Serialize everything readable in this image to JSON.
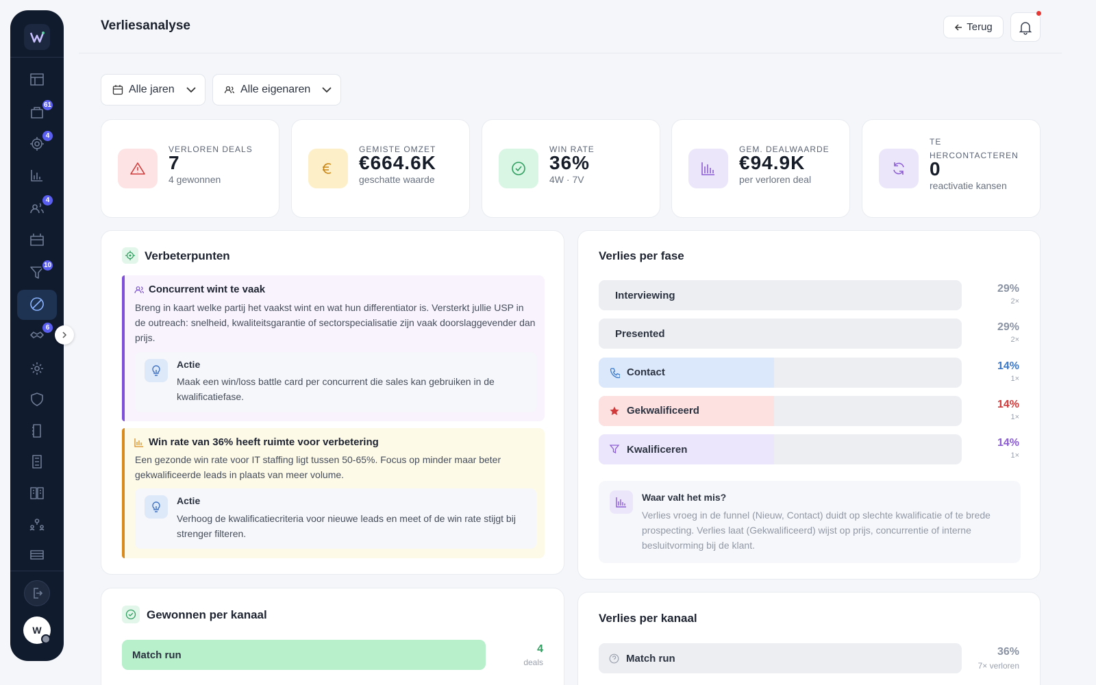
{
  "header": {
    "title": "Verliesanalyse",
    "back": "Terug"
  },
  "sidebar": {
    "badges": [
      61,
      4,
      4,
      10,
      6
    ],
    "avatar": "W"
  },
  "filters": [
    "Alle jaren",
    "Alle eigenaren"
  ],
  "kpis": [
    {
      "label": "VERLOREN DEALS",
      "value": "7",
      "sub": "4 gewonnen"
    },
    {
      "label": "GEMISTE OMZET",
      "value": "€664.6K",
      "sub": "geschatte waarde"
    },
    {
      "label": "WIN RATE",
      "value": "36%",
      "sub": "4W · 7V"
    },
    {
      "label": "GEM. DEALWAARDE",
      "value": "€94.9K",
      "sub": "per verloren deal"
    },
    {
      "label": "TE HERCONTACTEREN",
      "value": "0",
      "sub": "reactivatie kansen"
    }
  ],
  "improvements": {
    "title": "Verbeterpunten",
    "items": [
      {
        "title": "Concurrent wint te vaak",
        "text": "Breng in kaart welke partij het vaakst wint en wat hun differentiator is. Versterkt jullie USP in de outreach: snelheid, kwaliteitsgarantie of sectorspecialisatie zijn vaak doorslaggevender dan prijs.",
        "action_label": "Actie",
        "action": "Maak een win/loss battle card per concurrent die sales kan gebruiken in de kwalificatiefase."
      },
      {
        "title": "Win rate van 36% heeft ruimte voor verbetering",
        "text": "Een gezonde win rate voor IT staffing ligt tussen 50-65%. Focus op minder maar beter gekwalificeerde leads in plaats van meer volume.",
        "action_label": "Actie",
        "action": "Verhoog de kwalificatiecriteria voor nieuwe leads en meet of de win rate stijgt bij strenger filteren."
      }
    ]
  },
  "phases": {
    "title": "Verlies per fase",
    "rows": [
      {
        "name": "Interviewing",
        "value": 29,
        "label": "29%",
        "count": "2×",
        "color": "#eceef2",
        "accent": "#8a93a3"
      },
      {
        "name": "Presented",
        "value": 29,
        "label": "29%",
        "count": "2×",
        "color": "#eceef2",
        "accent": "#8a93a3"
      },
      {
        "name": "Contact",
        "value": 14,
        "label": "14%",
        "count": "1×",
        "color": "#dbe8fb",
        "accent": "#3b78c8"
      },
      {
        "name": "Gekwalificeerd",
        "value": 14,
        "label": "14%",
        "count": "1×",
        "color": "#fde1e1",
        "accent": "#d13a3a"
      },
      {
        "name": "Kwalificeren",
        "value": 14,
        "label": "14%",
        "count": "1×",
        "color": "#ebe6fb",
        "accent": "#8c5cd4"
      }
    ],
    "note": {
      "title": "Waar valt het mis?",
      "text": "Verlies vroeg in de funnel (Nieuw, Contact) duidt op slechte kwalificatie of te brede prospecting. Verlies laat (Gekwalificeerd) wijst op prijs, concurrentie of interne besluitvorming bij de klant."
    }
  },
  "won_channels": {
    "title": "Gewonnen per kanaal",
    "rows": [
      {
        "name": "Match run",
        "value": 4,
        "unit": "deals"
      }
    ]
  },
  "lost_channels": {
    "title": "Verlies per kanaal",
    "rows": [
      {
        "name": "Match run",
        "value": 36,
        "label": "36%",
        "count": "7× verloren"
      }
    ]
  }
}
